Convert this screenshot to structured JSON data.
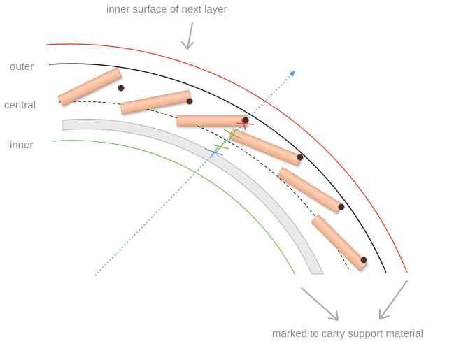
{
  "labels": {
    "top": "inner surface of next layer",
    "outer": "outer",
    "central": "central",
    "inner": "inner",
    "bottom": "marked to carry support material"
  },
  "colors": {
    "outer_surface": "#000000",
    "next_layer": "#e8392b",
    "inner_ring": "#6fb84a",
    "direction_arrow": "#5b9bd5",
    "support_band": "#e6e6e6",
    "staves": "#f7c1a0",
    "label_text": "#8a8a8a",
    "pointer_arrow": "#a6a6a6"
  }
}
